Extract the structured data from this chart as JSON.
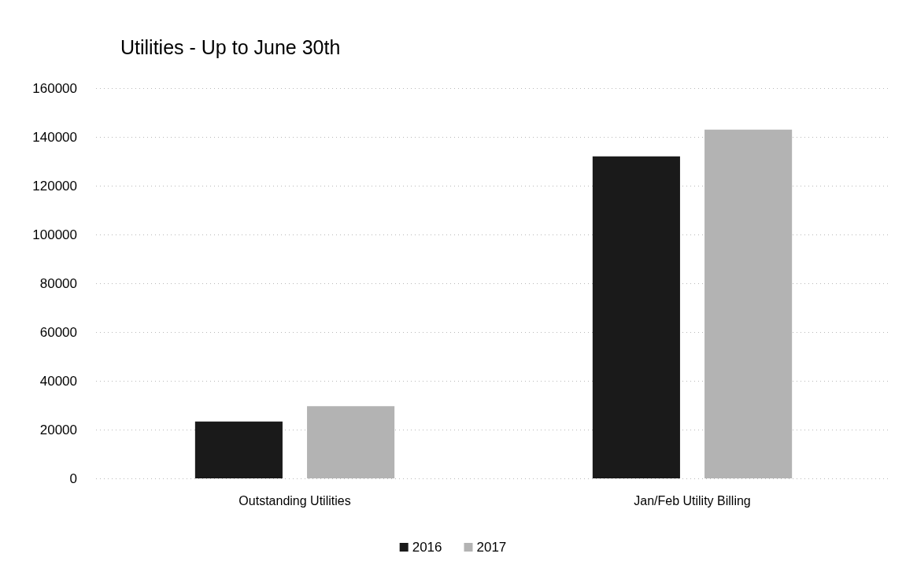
{
  "chart_data": {
    "type": "bar",
    "title": "Utilities - Up to June 30th",
    "categories": [
      "Outstanding Utilities",
      "Jan/Feb Utility Billing"
    ],
    "series": [
      {
        "name": "2016",
        "color": "#1a1a1a",
        "values": [
          23300,
          132000
        ]
      },
      {
        "name": "2017",
        "color": "#b3b3b3",
        "values": [
          29600,
          143000
        ]
      }
    ],
    "ylim": [
      0,
      160000
    ],
    "yticks": [
      0,
      20000,
      40000,
      60000,
      80000,
      100000,
      120000,
      140000,
      160000
    ],
    "grid": "y",
    "legend": "bottom"
  }
}
